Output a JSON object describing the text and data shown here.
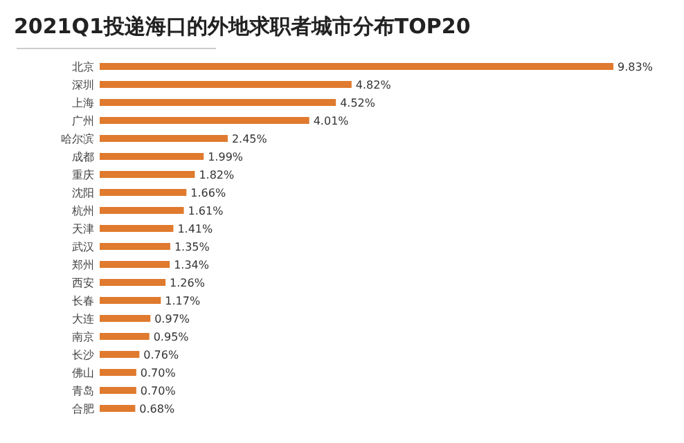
{
  "chart_data": {
    "type": "bar",
    "orientation": "horizontal",
    "title": "2021Q1投递海口的外地求职者城市分布TOP20",
    "categories": [
      "北京",
      "深圳",
      "上海",
      "广州",
      "哈尔滨",
      "成都",
      "重庆",
      "沈阳",
      "杭州",
      "天津",
      "武汉",
      "郑州",
      "西安",
      "长春",
      "大连",
      "南京",
      "长沙",
      "佛山",
      "青岛",
      "合肥"
    ],
    "values": [
      9.83,
      4.82,
      4.52,
      4.01,
      2.45,
      1.99,
      1.82,
      1.66,
      1.61,
      1.41,
      1.35,
      1.34,
      1.26,
      1.17,
      0.97,
      0.95,
      0.76,
      0.7,
      0.7,
      0.68
    ],
    "value_labels": [
      "9.83%",
      "4.82%",
      "4.52%",
      "4.01%",
      "2.45%",
      "1.99%",
      "1.82%",
      "1.66%",
      "1.61%",
      "1.41%",
      "1.35%",
      "1.34%",
      "1.26%",
      "1.17%",
      "0.97%",
      "0.95%",
      "0.76%",
      "0.70%",
      "0.70%",
      "0.68%"
    ],
    "color": "#e07a2e",
    "grid": false
  }
}
